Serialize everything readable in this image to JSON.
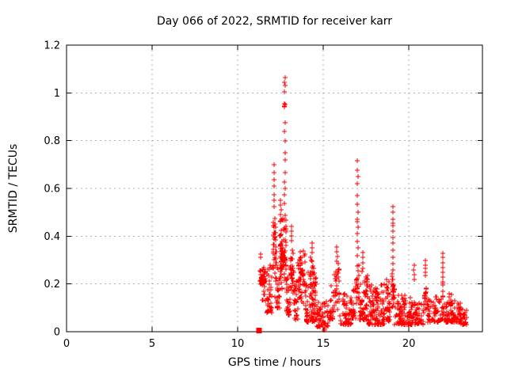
{
  "chart_data": {
    "type": "scatter",
    "title": "Day 066 of 2022, SRMTID for receiver karr",
    "xlabel": "GPS time / hours",
    "ylabel": "SRMTID / TECUs",
    "xlim": [
      0,
      24.3
    ],
    "ylim": [
      0,
      1.2
    ],
    "xticks": [
      0,
      5,
      10,
      15,
      20
    ],
    "yticks": [
      0,
      0.2,
      0.4,
      0.6,
      0.8,
      1,
      1.2
    ],
    "grid": true,
    "legend": "none",
    "colors": {
      "marker": "#ff0000",
      "grid": "#b3b3b3",
      "border": "#000000",
      "background": "#ffffff",
      "text": "#000000"
    },
    "marker": {
      "shape": "plus",
      "size": 7
    },
    "start_marker": {
      "shape": "filled-square",
      "x": 11.25,
      "y": 0.005,
      "size": 7
    },
    "data_time_span_hours": [
      11.2,
      23.4
    ],
    "peak_value": 1.065,
    "peak_time": 12.76,
    "highlight_points": [
      [
        12.76,
        1.065
      ],
      [
        12.75,
        1.045
      ],
      [
        12.76,
        1.03
      ],
      [
        12.75,
        1.005
      ],
      [
        12.74,
        0.955
      ],
      [
        12.76,
        0.95
      ],
      [
        12.75,
        0.945
      ],
      [
        12.74,
        0.94
      ],
      [
        12.76,
        0.875
      ],
      [
        12.75,
        0.84
      ],
      [
        12.76,
        0.8
      ],
      [
        12.78,
        0.75
      ],
      [
        12.77,
        0.72
      ],
      [
        12.76,
        0.665
      ],
      [
        12.75,
        0.625
      ],
      [
        12.77,
        0.6
      ],
      [
        12.74,
        0.575
      ],
      [
        12.12,
        0.7
      ],
      [
        12.13,
        0.665
      ],
      [
        12.12,
        0.635
      ],
      [
        12.14,
        0.61
      ],
      [
        12.12,
        0.575
      ],
      [
        12.13,
        0.55
      ],
      [
        12.11,
        0.525
      ],
      [
        12.52,
        0.55
      ],
      [
        12.5,
        0.53
      ],
      [
        12.54,
        0.51
      ],
      [
        12.51,
        0.49
      ],
      [
        12.53,
        0.47
      ],
      [
        12.49,
        0.46
      ],
      [
        17.0,
        0.716
      ],
      [
        17.0,
        0.676
      ],
      [
        17.01,
        0.65
      ],
      [
        17.0,
        0.62
      ],
      [
        16.99,
        0.57
      ],
      [
        17.0,
        0.533
      ],
      [
        17.01,
        0.5
      ],
      [
        17.0,
        0.47
      ],
      [
        17.0,
        0.46
      ],
      [
        17.01,
        0.437
      ],
      [
        17.0,
        0.41
      ],
      [
        17.0,
        0.378
      ],
      [
        17.01,
        0.35
      ],
      [
        17.0,
        0.318
      ],
      [
        19.07,
        0.524
      ],
      [
        19.07,
        0.5
      ],
      [
        19.08,
        0.47
      ],
      [
        19.07,
        0.455
      ],
      [
        19.06,
        0.445
      ],
      [
        19.08,
        0.445
      ],
      [
        19.07,
        0.42
      ],
      [
        19.07,
        0.395
      ],
      [
        19.08,
        0.37
      ],
      [
        19.07,
        0.34
      ],
      [
        19.06,
        0.31
      ],
      [
        19.07,
        0.285
      ],
      [
        19.08,
        0.26
      ],
      [
        21.98,
        0.328
      ],
      [
        21.99,
        0.31
      ],
      [
        21.98,
        0.29
      ],
      [
        22.0,
        0.27
      ],
      [
        21.99,
        0.25
      ],
      [
        21.98,
        0.23
      ],
      [
        21.99,
        0.21
      ],
      [
        21.98,
        0.202
      ],
      [
        22.0,
        0.195
      ],
      [
        21.99,
        0.17
      ],
      [
        21.98,
        0.15
      ],
      [
        20.97,
        0.3
      ],
      [
        20.96,
        0.28
      ],
      [
        20.98,
        0.265
      ],
      [
        20.97,
        0.25
      ],
      [
        20.96,
        0.235
      ],
      [
        15.8,
        0.355
      ],
      [
        15.79,
        0.335
      ],
      [
        15.81,
        0.315
      ],
      [
        15.8,
        0.295
      ],
      [
        13.15,
        0.44
      ],
      [
        13.14,
        0.42
      ],
      [
        13.16,
        0.4
      ],
      [
        13.15,
        0.38
      ],
      [
        14.35,
        0.37
      ],
      [
        14.33,
        0.35
      ],
      [
        14.37,
        0.33
      ],
      [
        17.3,
        0.33
      ],
      [
        17.29,
        0.31
      ],
      [
        17.31,
        0.29
      ],
      [
        20.3,
        0.28
      ],
      [
        20.29,
        0.26
      ],
      [
        20.31,
        0.24
      ],
      [
        20.3,
        0.22
      ],
      [
        11.35,
        0.325
      ],
      [
        11.33,
        0.31
      ],
      [
        15.05,
        0.005
      ],
      [
        15.08,
        0.012
      ],
      [
        15.11,
        0.005
      ]
    ],
    "clusters_format": "[x_start_hour, x_end_hour, y_min_TECUs, y_max_TECUs, point_count, vertical_distribution]",
    "clusters": [
      [
        11.28,
        11.65,
        0.12,
        0.31,
        45,
        "mid"
      ],
      [
        11.7,
        12.02,
        0.08,
        0.28,
        40,
        "low"
      ],
      [
        12.05,
        12.25,
        0.12,
        0.52,
        40,
        "mid"
      ],
      [
        12.28,
        12.46,
        0.1,
        0.3,
        25,
        "low"
      ],
      [
        12.46,
        12.66,
        0.14,
        0.5,
        55,
        "mid"
      ],
      [
        12.68,
        12.84,
        0.15,
        0.55,
        40,
        "mid"
      ],
      [
        12.86,
        13.06,
        0.07,
        0.3,
        35,
        "low"
      ],
      [
        13.06,
        13.28,
        0.1,
        0.38,
        35,
        "mid"
      ],
      [
        13.3,
        13.52,
        0.05,
        0.24,
        25,
        "low"
      ],
      [
        13.52,
        13.95,
        0.1,
        0.345,
        55,
        "mid"
      ],
      [
        13.95,
        14.58,
        0.04,
        0.25,
        80,
        "low"
      ],
      [
        14.2,
        14.5,
        0.18,
        0.33,
        18,
        "mid"
      ],
      [
        14.6,
        15.3,
        0.02,
        0.13,
        55,
        "low"
      ],
      [
        15.35,
        15.62,
        0.05,
        0.21,
        25,
        "low"
      ],
      [
        15.66,
        15.95,
        0.08,
        0.3,
        32,
        "mid"
      ],
      [
        15.98,
        16.62,
        0.03,
        0.18,
        60,
        "low"
      ],
      [
        16.62,
        16.9,
        0.05,
        0.2,
        25,
        "low"
      ],
      [
        16.93,
        17.08,
        0.1,
        0.3,
        20,
        "mid"
      ],
      [
        17.1,
        17.4,
        0.05,
        0.28,
        40,
        "low"
      ],
      [
        17.4,
        17.62,
        0.05,
        0.24,
        30,
        "low"
      ],
      [
        17.62,
        18.62,
        0.03,
        0.2,
        110,
        "low"
      ],
      [
        18.64,
        18.92,
        0.04,
        0.22,
        35,
        "low"
      ],
      [
        19.0,
        19.16,
        0.08,
        0.25,
        25,
        "mid"
      ],
      [
        19.18,
        20.28,
        0.03,
        0.16,
        110,
        "low"
      ],
      [
        20.32,
        20.88,
        0.03,
        0.13,
        45,
        "low"
      ],
      [
        20.9,
        21.06,
        0.08,
        0.23,
        18,
        "mid"
      ],
      [
        21.06,
        21.88,
        0.04,
        0.15,
        55,
        "low"
      ],
      [
        21.9,
        22.06,
        0.05,
        0.15,
        15,
        "low"
      ],
      [
        22.06,
        22.56,
        0.04,
        0.17,
        50,
        "low"
      ],
      [
        22.56,
        23.02,
        0.04,
        0.13,
        40,
        "low"
      ],
      [
        23.02,
        23.4,
        0.03,
        0.1,
        30,
        "low"
      ]
    ]
  }
}
